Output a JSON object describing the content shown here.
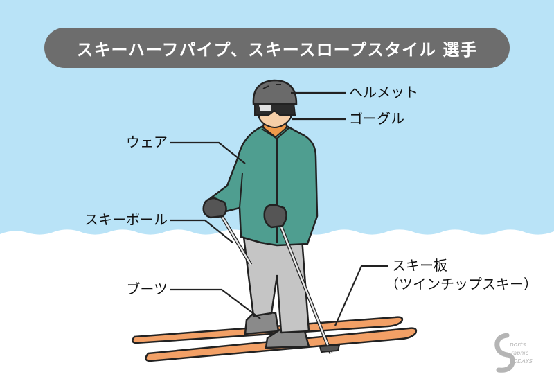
{
  "title": "スキーハーフパイプ、スキースロープスタイル 選手",
  "labels": {
    "helmet": "ヘルメット",
    "goggles": "ゴーグル",
    "wear": "ウェア",
    "pole": "スキーポール",
    "boots": "ブーツ",
    "ski_line1": "スキー板",
    "ski_line2": "（ツインチップスキー）"
  },
  "logo_text": "Sports Graphic TODAYS",
  "colors": {
    "sky": "#b9e3f7",
    "snow": "#ffffff",
    "title_bg": "#6d6d6d",
    "jacket": "#4f9e90",
    "pants": "#c5c5c5",
    "ski": "#f2a066",
    "helmet": "#6a6a6a",
    "inner": "#ef9a4a"
  }
}
